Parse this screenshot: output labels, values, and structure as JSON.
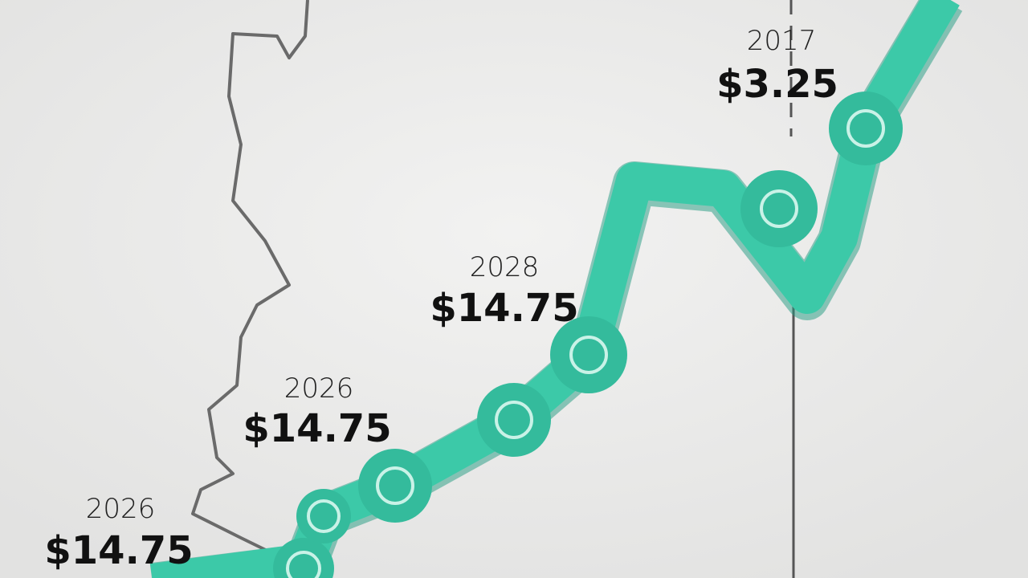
{
  "labels": [
    {
      "year": "2026",
      "price": "$14.75"
    },
    {
      "year": "2026",
      "price": "$14.75"
    },
    {
      "year": "2028",
      "price": "$14.75"
    },
    {
      "year": "2017",
      "price": "$3.25"
    }
  ]
}
